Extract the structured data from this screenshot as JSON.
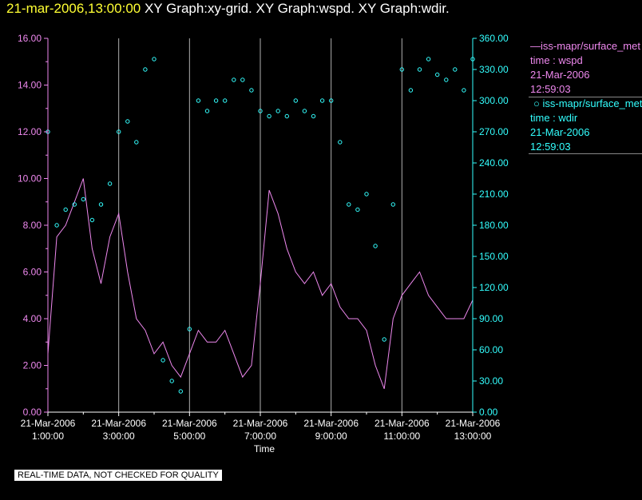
{
  "title": {
    "timestamp": "21-mar-2006,13:00:00",
    "graphs": "XY Graph:xy-grid.  XY Graph:wspd.  XY Graph:wdir."
  },
  "colors": {
    "wspd": "#ee88ee",
    "wdir": "#33ffff",
    "grid": "#b0b0b0",
    "axis": "#ffffff"
  },
  "legend": [
    {
      "label": "iss-mapr/surface_met",
      "line1": "time : wspd",
      "line2": "21-Mar-2006",
      "line3": "12:59:03"
    },
    {
      "label": "iss-mapr/surface_met",
      "line1": "time : wdir",
      "line2": "21-Mar-2006",
      "line3": "12:59:03"
    }
  ],
  "footer": "REAL-TIME DATA, NOT CHECKED FOR QUALITY",
  "chart_data": {
    "type": "line",
    "xlabel": "Time",
    "x_ticks": [
      {
        "date": "21-Mar-2006",
        "time": "1:00:00"
      },
      {
        "date": "21-Mar-2006",
        "time": "3:00:00"
      },
      {
        "date": "21-Mar-2006",
        "time": "5:00:00"
      },
      {
        "date": "21-Mar-2006",
        "time": "7:00:00"
      },
      {
        "date": "21-Mar-2006",
        "time": "9:00:00"
      },
      {
        "date": "21-Mar-2006",
        "time": "11:00:00"
      },
      {
        "date": "21-Mar-2006",
        "time": "13:00:00"
      }
    ],
    "xlim": [
      "2006-03-21 01:00",
      "2006-03-21 13:00"
    ],
    "y_left_ticks": [
      "0.00",
      "2.00",
      "4.00",
      "6.00",
      "8.00",
      "10.00",
      "12.00",
      "14.00",
      "16.00"
    ],
    "y_right_ticks": [
      "0.00",
      "30.00",
      "60.00",
      "90.00",
      "120.00",
      "150.00",
      "180.00",
      "210.00",
      "240.00",
      "270.00",
      "300.00",
      "330.00",
      "360.00"
    ],
    "ylim_left": [
      0,
      16
    ],
    "ylim_right": [
      0,
      360
    ],
    "grid": "vertical lines at each labeled time",
    "series": [
      {
        "type": "line",
        "axis": "left",
        "x": [
          "01:00",
          "01:15",
          "01:30",
          "01:45",
          "02:00",
          "02:15",
          "02:30",
          "02:45",
          "03:00",
          "03:15",
          "03:30",
          "03:45",
          "04:00",
          "04:15",
          "04:30",
          "04:45",
          "05:00",
          "05:15",
          "05:30",
          "05:45",
          "06:00",
          "06:15",
          "06:30",
          "06:45",
          "07:00",
          "07:15",
          "07:30",
          "07:45",
          "08:00",
          "08:15",
          "08:30",
          "08:45",
          "09:00",
          "09:15",
          "09:30",
          "09:45",
          "10:00",
          "10:15",
          "10:30",
          "10:45",
          "11:00",
          "11:15",
          "11:30",
          "11:45",
          "12:00",
          "12:15",
          "12:30",
          "12:45",
          "13:00"
        ],
        "values": [
          2.5,
          7.5,
          8.0,
          9.0,
          10.0,
          7.0,
          5.5,
          7.5,
          8.5,
          6.0,
          4.0,
          3.5,
          2.5,
          3.0,
          2.0,
          1.5,
          2.5,
          3.5,
          3.0,
          3.0,
          3.5,
          2.5,
          1.5,
          2.0,
          5.5,
          9.5,
          8.5,
          7.0,
          6.0,
          5.5,
          6.0,
          5.0,
          5.5,
          4.5,
          4.0,
          4.0,
          3.5,
          2.0,
          1.0,
          4.0,
          5.0,
          5.5,
          6.0,
          5.0,
          4.5,
          4.0,
          4.0,
          4.0,
          4.8
        ]
      },
      {
        "type": "scatter",
        "axis": "right",
        "x": [
          "01:00",
          "01:15",
          "01:30",
          "01:45",
          "02:00",
          "02:15",
          "02:30",
          "02:45",
          "03:00",
          "03:15",
          "03:30",
          "03:45",
          "04:00",
          "04:15",
          "04:30",
          "04:45",
          "05:00",
          "05:15",
          "05:30",
          "05:45",
          "06:00",
          "06:15",
          "06:30",
          "06:45",
          "07:00",
          "07:15",
          "07:30",
          "07:45",
          "08:00",
          "08:15",
          "08:30",
          "08:45",
          "09:00",
          "09:15",
          "09:30",
          "09:45",
          "10:00",
          "10:15",
          "10:30",
          "10:45",
          "11:00",
          "11:15",
          "11:30",
          "11:45",
          "12:00",
          "12:15",
          "12:30",
          "12:45",
          "13:00"
        ],
        "values": [
          270,
          180,
          195,
          200,
          205,
          185,
          200,
          220,
          270,
          280,
          260,
          330,
          340,
          50,
          30,
          20,
          80,
          300,
          290,
          300,
          300,
          320,
          320,
          310,
          290,
          285,
          290,
          285,
          300,
          290,
          285,
          300,
          300,
          260,
          200,
          195,
          210,
          160,
          70,
          200,
          330,
          310,
          330,
          340,
          325,
          320,
          330,
          310,
          340
        ]
      }
    ]
  }
}
